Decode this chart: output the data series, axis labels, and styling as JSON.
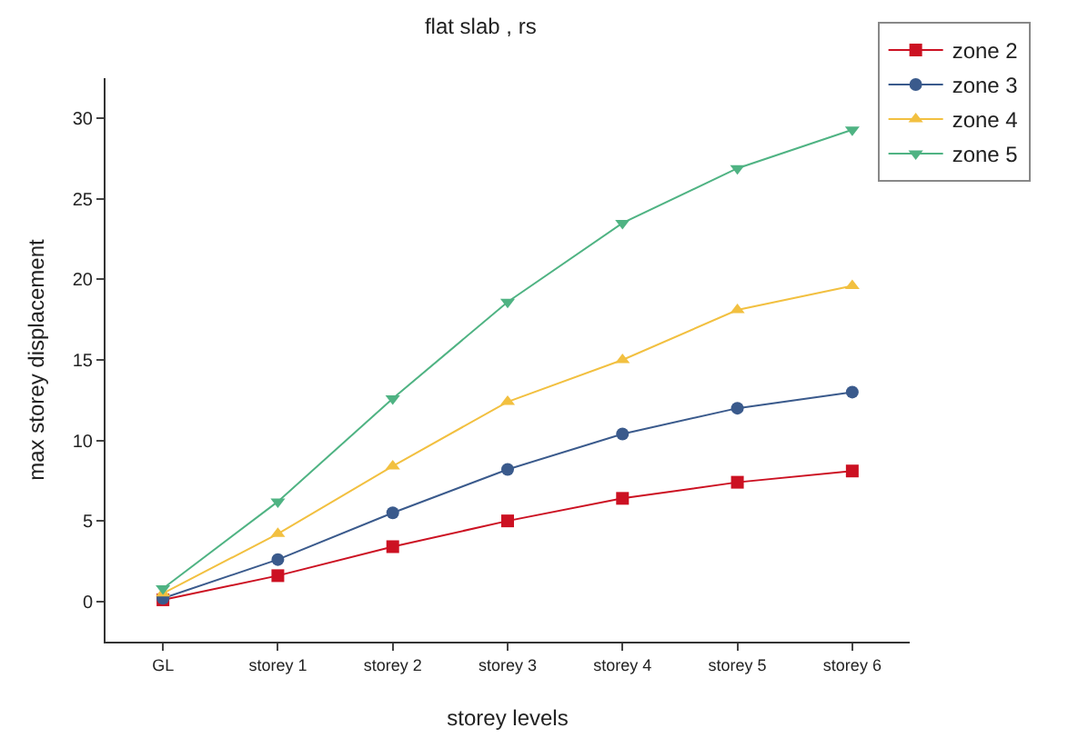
{
  "chart_data": {
    "type": "line",
    "title": "flat slab , rs",
    "xlabel": "storey levels",
    "ylabel": "max storey displacement",
    "categories": [
      "GL",
      "storey 1",
      "storey 2",
      "storey 3",
      "storey 4",
      "storey 5",
      "storey 6"
    ],
    "series": [
      {
        "name": "zone 2",
        "color": "#cc1122",
        "marker": "square",
        "values": [
          0.1,
          1.6,
          3.4,
          5.0,
          6.4,
          7.4,
          8.1
        ]
      },
      {
        "name": "zone 3",
        "color": "#3a5a8c",
        "marker": "circle",
        "values": [
          0.2,
          2.6,
          5.5,
          8.2,
          10.4,
          12.0,
          13.0
        ]
      },
      {
        "name": "zone 4",
        "color": "#f2c040",
        "marker": "triangle",
        "values": [
          0.5,
          4.2,
          8.4,
          12.4,
          15.0,
          18.1,
          19.6
        ]
      },
      {
        "name": "zone 5",
        "color": "#4fb383",
        "marker": "triangle-down",
        "values": [
          0.8,
          6.2,
          12.6,
          18.6,
          23.5,
          26.9,
          29.3
        ]
      }
    ],
    "ylim": [
      -2.5,
      32.5
    ],
    "yticks": [
      0,
      5,
      10,
      15,
      20,
      25,
      30
    ],
    "grid": false,
    "legend": "top right",
    "line_style": "solid"
  }
}
